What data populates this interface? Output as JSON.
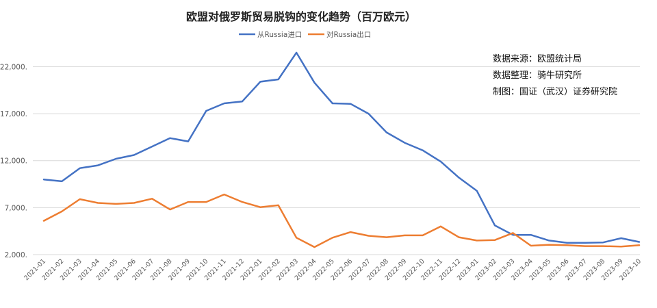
{
  "chart_data": {
    "type": "line",
    "title": "欧盟对俄罗斯贸易脱钩的变化趋势（百万欧元）",
    "ylim": [
      2000,
      24000
    ],
    "yticks": [
      "2,000.",
      "7,000.",
      "12,000.",
      "17,000.",
      "22,000."
    ],
    "ytick_values": [
      2000,
      7000,
      12000,
      17000,
      22000
    ],
    "grid": true,
    "legend_position": "top",
    "categories": [
      "2021-01",
      "2021-02",
      "2021-03",
      "2021-04",
      "2021-05",
      "2021-06",
      "2021-07",
      "2021-08",
      "2021-09",
      "2021-10",
      "2021-11",
      "2021-12",
      "2022-01",
      "2022-02",
      "2022-03",
      "2022-04",
      "2022-05",
      "2022-06",
      "2022-07",
      "2022-08",
      "2022-09",
      "2022-10",
      "2022-11",
      "2022-12",
      "2023-01",
      "2023-02",
      "2023-03",
      "2023-04",
      "2023-05",
      "2023-06",
      "2023-07",
      "2023-08",
      "2023-09",
      "2023-10"
    ],
    "series": [
      {
        "name": "从Russia进口",
        "color": "#4472C4",
        "values": [
          10000,
          9800,
          11200,
          11500,
          12200,
          12600,
          13500,
          14400,
          14050,
          17300,
          18100,
          18300,
          20400,
          20650,
          23500,
          20300,
          18100,
          18050,
          17000,
          15000,
          13900,
          13100,
          11900,
          10200,
          8800,
          5100,
          4100,
          4100,
          3500,
          3250,
          3250,
          3300,
          3750,
          3350
        ]
      },
      {
        "name": "对Russia出口",
        "color": "#ED7D31",
        "values": [
          5600,
          6600,
          7900,
          7500,
          7400,
          7500,
          7950,
          6800,
          7600,
          7600,
          8400,
          7600,
          7050,
          7250,
          3800,
          2800,
          3800,
          4400,
          4000,
          3850,
          4050,
          4050,
          5000,
          3850,
          3500,
          3550,
          4300,
          2950,
          3050,
          3000,
          2900,
          2900,
          2850,
          3000
        ]
      }
    ]
  },
  "notes": {
    "source": "数据来源：欧盟统计局",
    "compiled": "数据整理：骑牛研究所",
    "made_by": "制图：国证（武汉）证券研究院"
  }
}
